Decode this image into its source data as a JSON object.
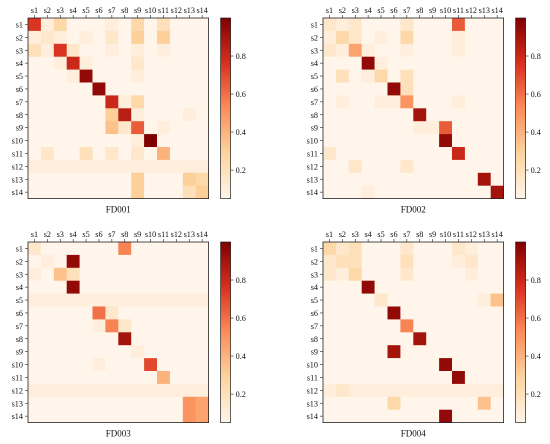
{
  "chart_data": [
    {
      "type": "heatmap",
      "title": "FD001",
      "labels": [
        "s1",
        "s2",
        "s3",
        "s4",
        "s5",
        "s6",
        "s7",
        "s8",
        "s9",
        "s10",
        "s11",
        "s12",
        "s13",
        "s14"
      ],
      "colorbar_ticks": [
        0.2,
        0.4,
        0.6,
        0.8
      ],
      "vmin": 0.05,
      "vmax": 1.0,
      "values": [
        [
          0.75,
          0.1,
          0.25,
          0.05,
          0.05,
          0.05,
          0.1,
          0.05,
          0.25,
          0.05,
          0.2,
          0.05,
          0.05,
          0.05
        ],
        [
          0.1,
          0.15,
          0.1,
          0.05,
          0.1,
          0.05,
          0.15,
          0.05,
          0.3,
          0.05,
          0.3,
          0.05,
          0.05,
          0.05
        ],
        [
          0.2,
          0.1,
          0.75,
          0.15,
          0.05,
          0.05,
          0.1,
          0.05,
          0.1,
          0.05,
          0.1,
          0.05,
          0.05,
          0.05
        ],
        [
          0.05,
          0.05,
          0.1,
          0.8,
          0.1,
          0.05,
          0.05,
          0.05,
          0.15,
          0.05,
          0.05,
          0.05,
          0.05,
          0.05
        ],
        [
          0.05,
          0.05,
          0.05,
          0.1,
          0.95,
          0.05,
          0.05,
          0.05,
          0.1,
          0.05,
          0.05,
          0.05,
          0.05,
          0.05
        ],
        [
          0.05,
          0.05,
          0.05,
          0.05,
          0.05,
          0.95,
          0.05,
          0.05,
          0.05,
          0.05,
          0.05,
          0.05,
          0.05,
          0.05
        ],
        [
          0.05,
          0.05,
          0.05,
          0.05,
          0.05,
          0.05,
          0.8,
          0.1,
          0.25,
          0.05,
          0.05,
          0.05,
          0.05,
          0.05
        ],
        [
          0.05,
          0.05,
          0.05,
          0.05,
          0.05,
          0.05,
          0.3,
          0.85,
          0.1,
          0.05,
          0.05,
          0.05,
          0.1,
          0.05
        ],
        [
          0.05,
          0.05,
          0.05,
          0.05,
          0.05,
          0.05,
          0.35,
          0.15,
          0.65,
          0.05,
          0.1,
          0.05,
          0.05,
          0.05
        ],
        [
          0.05,
          0.05,
          0.05,
          0.05,
          0.05,
          0.05,
          0.05,
          0.05,
          0.1,
          1.0,
          0.05,
          0.05,
          0.05,
          0.05
        ],
        [
          0.05,
          0.15,
          0.05,
          0.05,
          0.2,
          0.05,
          0.15,
          0.05,
          0.15,
          0.05,
          0.4,
          0.05,
          0.05,
          0.05
        ],
        [
          0.1,
          0.1,
          0.1,
          0.1,
          0.1,
          0.1,
          0.1,
          0.1,
          0.1,
          0.1,
          0.1,
          0.1,
          0.1,
          0.1
        ],
        [
          0.05,
          0.05,
          0.05,
          0.05,
          0.05,
          0.05,
          0.05,
          0.05,
          0.3,
          0.05,
          0.05,
          0.05,
          0.3,
          0.25
        ],
        [
          0.05,
          0.05,
          0.05,
          0.05,
          0.05,
          0.05,
          0.05,
          0.05,
          0.3,
          0.05,
          0.05,
          0.05,
          0.2,
          0.3
        ]
      ]
    },
    {
      "type": "heatmap",
      "title": "FD002",
      "labels": [
        "s1",
        "s2",
        "s3",
        "s4",
        "s5",
        "s6",
        "s7",
        "s8",
        "s9",
        "s10",
        "s11",
        "s12",
        "s13",
        "s14"
      ],
      "colorbar_ticks": [
        0.2,
        0.4,
        0.6,
        0.8
      ],
      "vmin": 0.05,
      "vmax": 1.0,
      "values": [
        [
          0.15,
          0.1,
          0.15,
          0.05,
          0.05,
          0.05,
          0.15,
          0.05,
          0.05,
          0.05,
          0.65,
          0.05,
          0.05,
          0.05
        ],
        [
          0.1,
          0.25,
          0.15,
          0.05,
          0.1,
          0.05,
          0.25,
          0.05,
          0.05,
          0.05,
          0.1,
          0.05,
          0.05,
          0.05
        ],
        [
          0.15,
          0.1,
          0.45,
          0.1,
          0.05,
          0.05,
          0.1,
          0.05,
          0.05,
          0.05,
          0.1,
          0.05,
          0.05,
          0.05
        ],
        [
          0.05,
          0.05,
          0.05,
          0.95,
          0.1,
          0.05,
          0.05,
          0.05,
          0.05,
          0.05,
          0.05,
          0.05,
          0.05,
          0.05
        ],
        [
          0.05,
          0.2,
          0.05,
          0.1,
          0.25,
          0.05,
          0.2,
          0.05,
          0.05,
          0.05,
          0.05,
          0.05,
          0.05,
          0.05
        ],
        [
          0.05,
          0.05,
          0.05,
          0.05,
          0.05,
          0.95,
          0.2,
          0.05,
          0.05,
          0.05,
          0.05,
          0.05,
          0.05,
          0.05
        ],
        [
          0.05,
          0.1,
          0.05,
          0.05,
          0.1,
          0.1,
          0.5,
          0.05,
          0.05,
          0.05,
          0.1,
          0.05,
          0.05,
          0.05
        ],
        [
          0.05,
          0.05,
          0.05,
          0.05,
          0.05,
          0.05,
          0.05,
          0.9,
          0.05,
          0.05,
          0.05,
          0.05,
          0.05,
          0.05
        ],
        [
          0.05,
          0.05,
          0.05,
          0.05,
          0.05,
          0.05,
          0.05,
          0.1,
          0.1,
          0.65,
          0.05,
          0.05,
          0.05,
          0.05
        ],
        [
          0.05,
          0.05,
          0.05,
          0.05,
          0.05,
          0.05,
          0.05,
          0.05,
          0.05,
          0.95,
          0.05,
          0.05,
          0.05,
          0.05
        ],
        [
          0.15,
          0.05,
          0.05,
          0.05,
          0.05,
          0.05,
          0.05,
          0.05,
          0.05,
          0.05,
          0.8,
          0.05,
          0.05,
          0.05
        ],
        [
          0.05,
          0.05,
          0.15,
          0.05,
          0.05,
          0.05,
          0.15,
          0.05,
          0.05,
          0.05,
          0.05,
          0.05,
          0.05,
          0.05
        ],
        [
          0.05,
          0.05,
          0.05,
          0.05,
          0.05,
          0.05,
          0.05,
          0.05,
          0.05,
          0.05,
          0.05,
          0.05,
          0.9,
          0.05
        ],
        [
          0.05,
          0.05,
          0.05,
          0.1,
          0.05,
          0.05,
          0.05,
          0.05,
          0.05,
          0.05,
          0.05,
          0.05,
          0.05,
          0.9
        ]
      ]
    },
    {
      "type": "heatmap",
      "title": "FD003",
      "labels": [
        "s1",
        "s2",
        "s3",
        "s4",
        "s5",
        "s6",
        "s7",
        "s8",
        "s9",
        "s10",
        "s11",
        "s12",
        "s13",
        "s14"
      ],
      "colorbar_ticks": [
        0.2,
        0.4,
        0.6,
        0.8
      ],
      "vmin": 0.05,
      "vmax": 1.0,
      "values": [
        [
          0.15,
          0.05,
          0.05,
          0.05,
          0.05,
          0.05,
          0.05,
          0.55,
          0.05,
          0.05,
          0.05,
          0.05,
          0.05,
          0.05
        ],
        [
          0.05,
          0.1,
          0.05,
          0.95,
          0.05,
          0.05,
          0.05,
          0.05,
          0.05,
          0.05,
          0.05,
          0.05,
          0.05,
          0.05
        ],
        [
          0.1,
          0.05,
          0.35,
          0.2,
          0.05,
          0.05,
          0.05,
          0.05,
          0.05,
          0.05,
          0.05,
          0.05,
          0.05,
          0.05
        ],
        [
          0.05,
          0.05,
          0.05,
          0.95,
          0.05,
          0.05,
          0.05,
          0.05,
          0.05,
          0.05,
          0.05,
          0.05,
          0.05,
          0.05
        ],
        [
          0.1,
          0.1,
          0.1,
          0.1,
          0.1,
          0.1,
          0.1,
          0.1,
          0.1,
          0.1,
          0.1,
          0.1,
          0.1,
          0.1
        ],
        [
          0.05,
          0.05,
          0.05,
          0.05,
          0.05,
          0.6,
          0.15,
          0.05,
          0.05,
          0.05,
          0.05,
          0.05,
          0.05,
          0.05
        ],
        [
          0.05,
          0.05,
          0.05,
          0.05,
          0.05,
          0.1,
          0.55,
          0.15,
          0.05,
          0.05,
          0.05,
          0.05,
          0.05,
          0.05
        ],
        [
          0.05,
          0.05,
          0.05,
          0.05,
          0.05,
          0.05,
          0.05,
          0.9,
          0.05,
          0.05,
          0.05,
          0.05,
          0.05,
          0.05
        ],
        [
          0.05,
          0.05,
          0.05,
          0.05,
          0.05,
          0.05,
          0.05,
          0.05,
          0.1,
          0.05,
          0.05,
          0.05,
          0.05,
          0.05
        ],
        [
          0.05,
          0.05,
          0.05,
          0.05,
          0.05,
          0.1,
          0.05,
          0.05,
          0.05,
          0.7,
          0.05,
          0.05,
          0.05,
          0.05
        ],
        [
          0.05,
          0.05,
          0.05,
          0.05,
          0.05,
          0.05,
          0.05,
          0.05,
          0.05,
          0.05,
          0.4,
          0.05,
          0.05,
          0.05
        ],
        [
          0.1,
          0.1,
          0.1,
          0.1,
          0.1,
          0.1,
          0.1,
          0.1,
          0.1,
          0.1,
          0.1,
          0.1,
          0.1,
          0.1
        ],
        [
          0.05,
          0.05,
          0.05,
          0.05,
          0.05,
          0.05,
          0.05,
          0.05,
          0.05,
          0.05,
          0.05,
          0.05,
          0.5,
          0.45
        ],
        [
          0.05,
          0.05,
          0.05,
          0.05,
          0.05,
          0.05,
          0.05,
          0.05,
          0.05,
          0.05,
          0.05,
          0.05,
          0.5,
          0.45
        ]
      ]
    },
    {
      "type": "heatmap",
      "title": "FD004",
      "labels": [
        "s1",
        "s2",
        "s3",
        "s4",
        "s5",
        "s6",
        "s7",
        "s8",
        "s9",
        "s10",
        "s11",
        "s12",
        "s13",
        "s14"
      ],
      "colorbar_ticks": [
        0.2,
        0.4,
        0.6,
        0.8
      ],
      "vmin": 0.05,
      "vmax": 1.0,
      "values": [
        [
          0.25,
          0.15,
          0.2,
          0.05,
          0.05,
          0.05,
          0.15,
          0.05,
          0.05,
          0.05,
          0.15,
          0.1,
          0.05,
          0.05
        ],
        [
          0.15,
          0.2,
          0.2,
          0.05,
          0.05,
          0.05,
          0.2,
          0.05,
          0.05,
          0.05,
          0.1,
          0.15,
          0.05,
          0.05
        ],
        [
          0.15,
          0.1,
          0.25,
          0.05,
          0.05,
          0.05,
          0.15,
          0.05,
          0.05,
          0.05,
          0.05,
          0.1,
          0.05,
          0.05
        ],
        [
          0.05,
          0.05,
          0.05,
          0.95,
          0.05,
          0.05,
          0.05,
          0.05,
          0.05,
          0.05,
          0.05,
          0.05,
          0.05,
          0.05
        ],
        [
          0.05,
          0.05,
          0.05,
          0.05,
          0.15,
          0.05,
          0.05,
          0.05,
          0.05,
          0.05,
          0.05,
          0.05,
          0.1,
          0.35
        ],
        [
          0.05,
          0.05,
          0.05,
          0.05,
          0.05,
          0.95,
          0.05,
          0.05,
          0.05,
          0.05,
          0.05,
          0.05,
          0.05,
          0.05
        ],
        [
          0.05,
          0.05,
          0.05,
          0.05,
          0.05,
          0.05,
          0.55,
          0.05,
          0.05,
          0.05,
          0.05,
          0.05,
          0.05,
          0.05
        ],
        [
          0.05,
          0.05,
          0.05,
          0.05,
          0.05,
          0.05,
          0.05,
          0.9,
          0.05,
          0.05,
          0.05,
          0.05,
          0.05,
          0.05
        ],
        [
          0.05,
          0.05,
          0.05,
          0.05,
          0.05,
          0.9,
          0.05,
          0.05,
          0.05,
          0.05,
          0.05,
          0.05,
          0.05,
          0.05
        ],
        [
          0.05,
          0.05,
          0.05,
          0.05,
          0.05,
          0.05,
          0.05,
          0.05,
          0.05,
          0.95,
          0.05,
          0.05,
          0.05,
          0.05
        ],
        [
          0.05,
          0.05,
          0.05,
          0.05,
          0.05,
          0.05,
          0.05,
          0.05,
          0.05,
          0.05,
          0.95,
          0.05,
          0.05,
          0.05
        ],
        [
          0.1,
          0.15,
          0.1,
          0.1,
          0.1,
          0.1,
          0.1,
          0.1,
          0.1,
          0.1,
          0.1,
          0.1,
          0.1,
          0.1
        ],
        [
          0.05,
          0.05,
          0.05,
          0.05,
          0.05,
          0.25,
          0.05,
          0.05,
          0.05,
          0.05,
          0.05,
          0.05,
          0.35,
          0.05
        ],
        [
          0.05,
          0.05,
          0.05,
          0.05,
          0.05,
          0.05,
          0.05,
          0.05,
          0.05,
          0.95,
          0.05,
          0.05,
          0.05,
          0.05
        ]
      ]
    }
  ]
}
